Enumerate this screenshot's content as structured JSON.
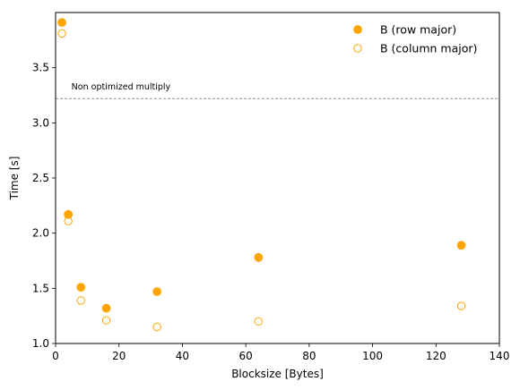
{
  "chart_data": {
    "type": "scatter",
    "xlabel": "Blocksize [Bytes]",
    "ylabel": "Time [s]",
    "xlim": [
      0,
      140
    ],
    "ylim": [
      1.0,
      4.0
    ],
    "xticks": [
      0,
      20,
      40,
      60,
      80,
      100,
      120,
      140
    ],
    "yticks": [
      1.0,
      1.5,
      2.0,
      2.5,
      3.0,
      3.5
    ],
    "xtick_labels": [
      "0",
      "20",
      "40",
      "60",
      "80",
      "100",
      "120",
      "140"
    ],
    "ytick_labels": [
      "1.0",
      "1.5",
      "2.0",
      "2.5",
      "3.0",
      "3.5"
    ],
    "grid": false,
    "legend_position": "top-right",
    "series": [
      {
        "name": "B (row major)",
        "marker": "filled-circle",
        "color": "#FFA500",
        "x": [
          2,
          4,
          8,
          16,
          32,
          64,
          128
        ],
        "y": [
          3.91,
          2.17,
          1.51,
          1.32,
          1.47,
          1.78,
          1.89
        ]
      },
      {
        "name": "B (column major)",
        "marker": "hollow-circle",
        "color": "#FFA500",
        "x": [
          2,
          4,
          8,
          16,
          32,
          64,
          128
        ],
        "y": [
          3.81,
          2.11,
          1.39,
          1.21,
          1.15,
          1.2,
          1.34
        ]
      }
    ],
    "reference_line": {
      "y": 3.22,
      "label": "Non optimized multiply",
      "style": "dashed",
      "color": "#808080"
    }
  }
}
